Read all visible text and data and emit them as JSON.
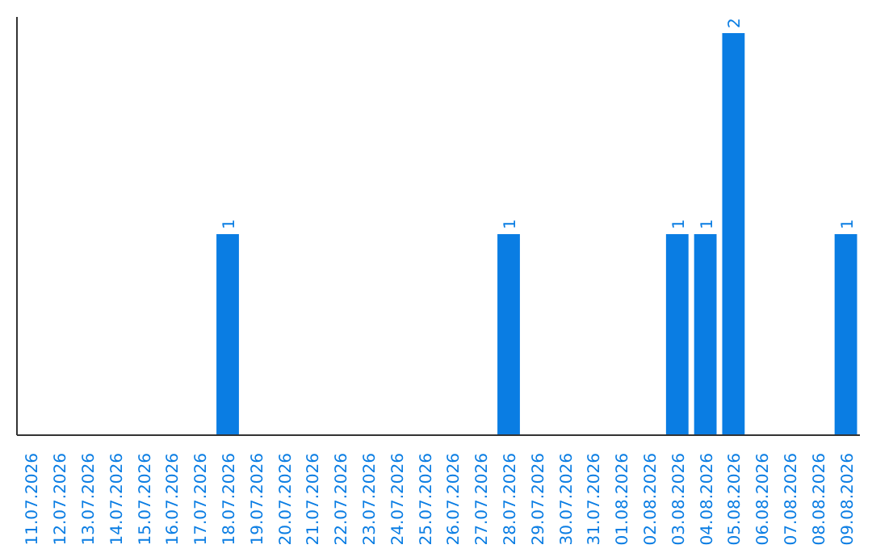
{
  "chart_data": {
    "type": "bar",
    "categories": [
      "11.07.2026",
      "12.07.2026",
      "13.07.2026",
      "14.07.2026",
      "15.07.2026",
      "16.07.2026",
      "17.07.2026",
      "18.07.2026",
      "19.07.2026",
      "20.07.2026",
      "21.07.2026",
      "22.07.2026",
      "23.07.2026",
      "24.07.2026",
      "25.07.2026",
      "26.07.2026",
      "27.07.2026",
      "28.07.2026",
      "29.07.2026",
      "30.07.2026",
      "31.07.2026",
      "01.08.2026",
      "02.08.2026",
      "03.08.2026",
      "04.08.2026",
      "05.08.2026",
      "06.08.2026",
      "07.08.2026",
      "08.08.2026",
      "09.08.2026"
    ],
    "values": [
      0,
      0,
      0,
      0,
      0,
      0,
      0,
      1,
      0,
      0,
      0,
      0,
      0,
      0,
      0,
      0,
      0,
      1,
      0,
      0,
      0,
      0,
      0,
      1,
      1,
      2,
      0,
      0,
      0,
      1
    ],
    "value_labels": [
      null,
      null,
      null,
      null,
      null,
      null,
      null,
      "1",
      null,
      null,
      null,
      null,
      null,
      null,
      null,
      null,
      null,
      "1",
      null,
      null,
      null,
      null,
      null,
      "1",
      "1",
      "2",
      null,
      null,
      null,
      "1"
    ],
    "color": "#0a7de3",
    "ylim": [
      0,
      2.08
    ],
    "grid": false,
    "tick_labels": "x"
  }
}
